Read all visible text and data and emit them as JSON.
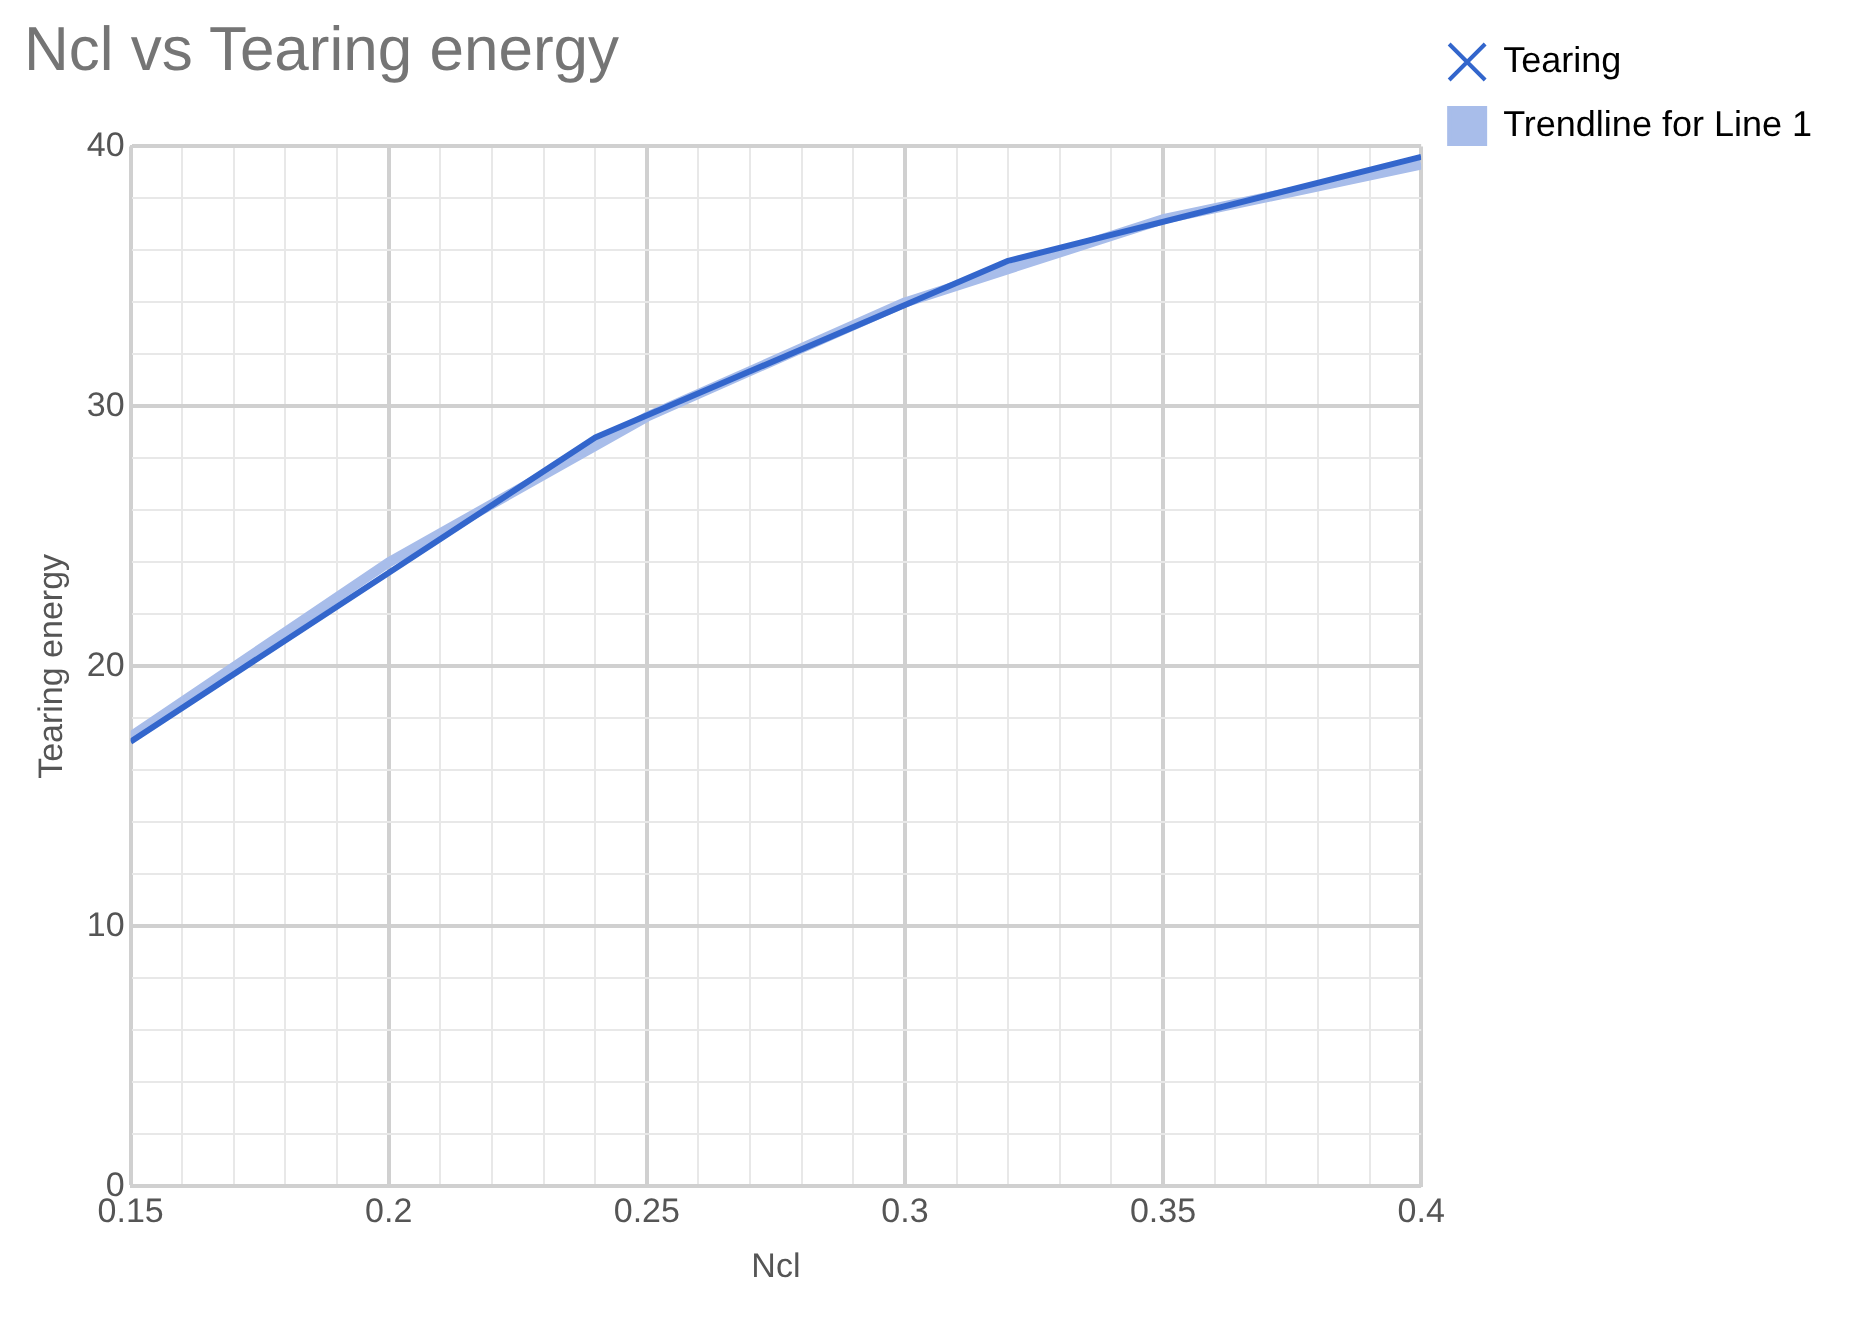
{
  "chart_data": {
    "type": "line",
    "title": "Ncl vs Tearing energy",
    "xlabel": "Ncl",
    "ylabel": "Tearing energy",
    "xlim": [
      0.15,
      0.4
    ],
    "xticks": [
      0.15,
      {
        "value": 0.16,
        "label": null
      },
      {
        "value": 0.17,
        "label": null
      },
      {
        "value": 0.18,
        "label": null
      },
      {
        "value": 0.19,
        "label": null
      },
      0.2,
      {
        "value": 0.21,
        "label": null
      },
      {
        "value": 0.22,
        "label": null
      },
      {
        "value": 0.23,
        "label": null
      },
      {
        "value": 0.24,
        "label": null
      },
      0.25,
      {
        "value": 0.26,
        "label": null
      },
      {
        "value": 0.27,
        "label": null
      },
      {
        "value": 0.28,
        "label": null
      },
      {
        "value": 0.29,
        "label": null
      },
      0.3,
      {
        "value": 0.31,
        "label": null
      },
      {
        "value": 0.32,
        "label": null
      },
      {
        "value": 0.33,
        "label": null
      },
      {
        "value": 0.34,
        "label": null
      },
      0.35,
      {
        "value": 0.36,
        "label": null
      },
      {
        "value": 0.37,
        "label": null
      },
      {
        "value": 0.38,
        "label": null
      },
      {
        "value": 0.39,
        "label": null
      },
      0.4
    ],
    "ylim": [
      0,
      40
    ],
    "yticks": [
      0,
      {
        "value": 2,
        "label": null
      },
      {
        "value": 4,
        "label": null
      },
      {
        "value": 6,
        "label": null
      },
      {
        "value": 8,
        "label": null
      },
      10,
      {
        "value": 12,
        "label": null
      },
      {
        "value": 14,
        "label": null
      },
      {
        "value": 16,
        "label": null
      },
      {
        "value": 18,
        "label": null
      },
      20,
      {
        "value": 22,
        "label": null
      },
      {
        "value": 24,
        "label": null
      },
      {
        "value": 26,
        "label": null
      },
      {
        "value": 28,
        "label": null
      },
      30,
      {
        "value": 32,
        "label": null
      },
      {
        "value": 34,
        "label": null
      },
      {
        "value": 36,
        "label": null
      },
      {
        "value": 38,
        "label": null
      },
      40
    ],
    "grid": true,
    "legend": "right",
    "series": [
      {
        "name": "Tearing",
        "color": "#3366cc",
        "x": [
          0.15,
          0.24,
          0.32,
          0.4
        ],
        "values": [
          17.1,
          28.8,
          35.6,
          39.6
        ]
      },
      {
        "name": "Trendline for Line 1",
        "color": "#a8bdea",
        "x": [
          0.15,
          0.2,
          0.25,
          0.3,
          0.35,
          0.4
        ],
        "values": [
          17.3,
          24.0,
          29.6,
          34.0,
          37.2,
          39.3
        ]
      }
    ]
  }
}
